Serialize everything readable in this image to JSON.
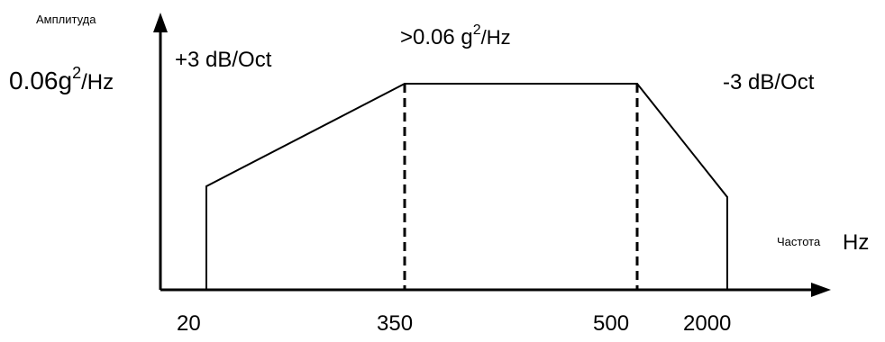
{
  "diagram": {
    "y_axis_label": "Амплитуда",
    "x_axis_label": "Частота",
    "x_axis_unit": "Hz",
    "level_label_base": "0.06g",
    "level_label_exp": "2",
    "level_label_unit": "/Hz",
    "plateau_label_base": ">0.06 g",
    "plateau_label_exp": "2",
    "plateau_label_unit": "/Hz",
    "rising_slope": "+3 dB/Oct",
    "falling_slope": "-3 dB/Oct",
    "x_ticks": [
      "20",
      "350",
      "500",
      "2000"
    ]
  }
}
